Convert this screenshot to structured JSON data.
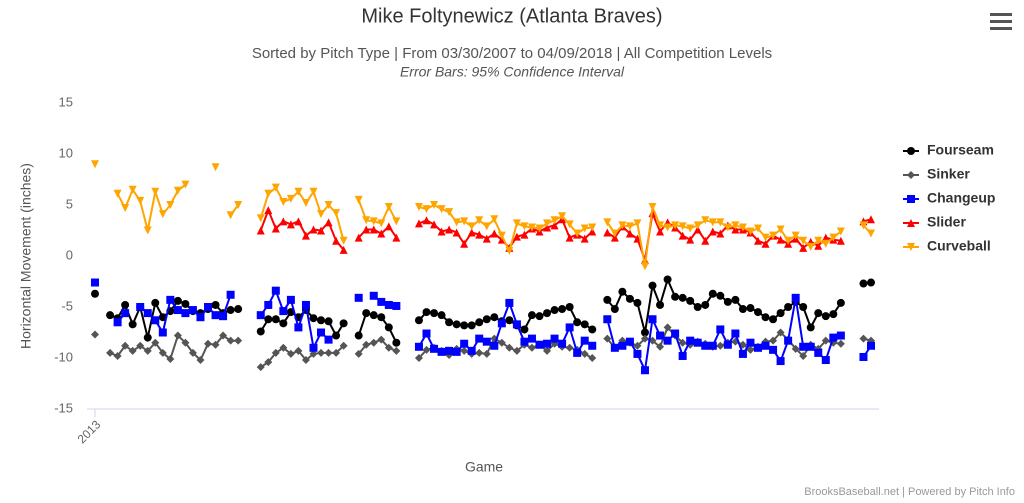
{
  "chart_data": {
    "type": "line",
    "title": "Mike Foltynewicz (Atlanta Braves)",
    "subtitle": "Sorted by Pitch Type | From 03/30/2007 to 04/09/2018 | All Competition Levels",
    "subtitle2": "Error Bars: 95% Confidence Interval",
    "x_label": "Game",
    "y_label": "Horizontal Movement (inches)",
    "credits": "BrooksBaseball.net | Powered by Pitch Info",
    "ylim": [
      -15,
      15
    ],
    "yticks": [
      15,
      10,
      5,
      0,
      -5,
      -10,
      -15
    ],
    "legend": "right",
    "categories": [
      "2013",
      null,
      null,
      null,
      null,
      null,
      null,
      null,
      null,
      null,
      null,
      null,
      null,
      null,
      null,
      null,
      null,
      null,
      null,
      null,
      null,
      null,
      null,
      null,
      null,
      null,
      null,
      null,
      null,
      null,
      null,
      null,
      null,
      null,
      null,
      null,
      null,
      null,
      null,
      null,
      null,
      null,
      null,
      null,
      null,
      null,
      null,
      null,
      null,
      null,
      null,
      null,
      null,
      null,
      null,
      null,
      null,
      null,
      null,
      null,
      null,
      null,
      null,
      null,
      null,
      null,
      null,
      null,
      null,
      null,
      null,
      null,
      null,
      null,
      null,
      null,
      null,
      null,
      null,
      null,
      null,
      null,
      null,
      null,
      null,
      null,
      null,
      null,
      null,
      null,
      null,
      null,
      null,
      null,
      null,
      null,
      null,
      null,
      null,
      null,
      null,
      null,
      null,
      null
    ],
    "series": [
      {
        "name": "Fourseam",
        "color": "#000000",
        "marker": "circle",
        "values": [
          -3.7,
          null,
          -5.8,
          -6.1,
          -4.8,
          -6.7,
          -5.0,
          -8.0,
          -4.6,
          -6.0,
          -5.4,
          -4.4,
          -4.7,
          -5.4,
          -5.6,
          -5.2,
          -4.8,
          -5.6,
          -5.3,
          -5.2,
          null,
          null,
          -7.4,
          -6.2,
          -6.2,
          -6.6,
          -5.5,
          -6.0,
          -5.3,
          -6.1,
          -6.3,
          -6.4,
          -7.8,
          -6.6,
          null,
          -7.8,
          -5.6,
          -5.8,
          -6.0,
          -7.0,
          -8.5,
          null,
          null,
          -6.3,
          -5.5,
          -5.6,
          -5.8,
          -6.5,
          -6.7,
          -6.8,
          -6.8,
          -6.5,
          -6.2,
          -6.0,
          -6.4,
          -6.3,
          -6.8,
          -7.2,
          -5.8,
          -5.9,
          -5.6,
          -5.3,
          -5.2,
          -5.0,
          -6.5,
          -6.7,
          -7.2,
          null,
          -4.3,
          -5.2,
          -3.5,
          -4.2,
          -4.6,
          -7.5,
          -2.9,
          -4.8,
          -2.3,
          -4.0,
          -4.1,
          -4.4,
          -5.0,
          -4.8,
          -3.7,
          -3.9,
          -4.5,
          -4.3,
          -5.2,
          -5.1,
          -5.5,
          -6.0,
          -6.2,
          -5.6,
          -5.0,
          -4.5,
          -5.0,
          -7.0,
          -5.6,
          -5.9,
          -5.7,
          -4.6,
          null,
          null,
          -2.7,
          -2.6
        ]
      },
      {
        "name": "Sinker",
        "color": "#555555",
        "marker": "diamond",
        "values": [
          -7.7,
          null,
          -9.5,
          -9.8,
          -8.8,
          -9.3,
          -8.8,
          -9.3,
          -8.5,
          -9.5,
          -10.1,
          -7.8,
          -8.5,
          -9.5,
          -10.2,
          -8.6,
          -8.7,
          -7.8,
          -8.3,
          -8.3,
          null,
          null,
          -10.9,
          -10.4,
          -9.5,
          -9.0,
          -9.6,
          -9.3,
          -10.2,
          -9.6,
          -9.5,
          -9.5,
          -9.5,
          -8.8,
          null,
          -9.6,
          -8.7,
          -8.5,
          -8.2,
          -9.0,
          -9.3,
          null,
          null,
          -10.0,
          -9.2,
          -9.0,
          -9.3,
          -9.7,
          -9.1,
          -9.3,
          -9.6,
          -9.5,
          -9.6,
          -8.1,
          -8.5,
          -9.0,
          -9.3,
          -8.7,
          -9.0,
          -8.7,
          -9.3,
          -8.6,
          -8.9,
          -9.0,
          -9.2,
          -9.6,
          -10.0,
          null,
          -8.1,
          -9.0,
          -8.3,
          -8.5,
          -8.8,
          -8.1,
          -8.3,
          -8.9,
          -7.0,
          -7.8,
          -8.5,
          -8.7,
          -8.4,
          -8.6,
          -8.9,
          -8.8,
          -8.5,
          -8.4,
          -8.7,
          -9.2,
          -8.9,
          -8.4,
          -8.3,
          -7.5,
          -8.2,
          -9.1,
          -9.8,
          -8.7,
          -9.1,
          -8.3,
          -8.5,
          -8.6,
          null,
          null,
          -8.1,
          -8.3
        ]
      },
      {
        "name": "Changeup",
        "color": "#0000ff",
        "marker": "square",
        "values": [
          -2.6,
          null,
          null,
          -6.5,
          -5.6,
          null,
          -5.0,
          -5.6,
          -6.3,
          -7.5,
          -4.3,
          -5.3,
          -5.6,
          -5.3,
          -6.0,
          -5.0,
          -5.8,
          -5.9,
          -3.8,
          null,
          null,
          null,
          -5.8,
          -4.8,
          -3.4,
          -5.4,
          -4.3,
          -7.0,
          -4.8,
          -9.0,
          -7.5,
          -8.2,
          null,
          null,
          null,
          -4.1,
          null,
          -3.9,
          -4.5,
          -4.8,
          -4.9,
          null,
          null,
          -8.9,
          -7.6,
          -9.1,
          -9.4,
          -9.3,
          -9.4,
          -8.6,
          -9.3,
          -8.1,
          -8.4,
          -8.8,
          -6.6,
          -4.6,
          -6.7,
          -8.4,
          -8.1,
          -8.7,
          -8.6,
          -8.1,
          -8.6,
          -7.0,
          -9.5,
          -8.3,
          -8.8,
          null,
          -6.2,
          -9.0,
          -8.8,
          -8.4,
          -9.6,
          -11.2,
          -6.2,
          -7.8,
          -8.3,
          -7.6,
          -9.8,
          -8.3,
          -8.5,
          -8.8,
          -8.8,
          -7.2,
          -8.7,
          -7.6,
          -9.6,
          -8.5,
          -9.0,
          -8.8,
          -9.2,
          -10.3,
          -8.3,
          -4.1,
          -8.9,
          -8.9,
          -9.5,
          -10.2,
          -8.0,
          -7.8,
          null,
          null,
          -9.9,
          -8.8
        ]
      },
      {
        "name": "Slider",
        "color": "#ff0000",
        "marker": "triangle",
        "values": [
          null,
          null,
          null,
          null,
          null,
          null,
          null,
          null,
          null,
          null,
          null,
          null,
          null,
          null,
          null,
          null,
          null,
          null,
          null,
          null,
          null,
          null,
          2.5,
          4.5,
          2.7,
          3.4,
          3.1,
          3.4,
          2.0,
          2.6,
          2.5,
          3.3,
          1.5,
          0.6,
          null,
          1.8,
          2.6,
          2.6,
          2.2,
          2.9,
          1.8,
          null,
          null,
          3.2,
          3.5,
          3.1,
          2.4,
          2.6,
          2.3,
          1.2,
          2.3,
          2.1,
          1.7,
          2.2,
          1.6,
          0.8,
          1.9,
          2.1,
          2.7,
          2.4,
          2.8,
          3.0,
          3.6,
          1.8,
          2.1,
          1.7,
          2.4,
          null,
          2.3,
          1.8,
          2.9,
          2.2,
          1.7,
          -0.4,
          4.2,
          2.4,
          3.3,
          2.8,
          2.0,
          1.6,
          2.6,
          1.5,
          2.4,
          2.2,
          3.0,
          2.6,
          2.6,
          2.3,
          1.5,
          1.2,
          2.0,
          1.6,
          1.2,
          1.7,
          0.8,
          1.4,
          1.0,
          1.8,
          1.6,
          1.5,
          null,
          null,
          3.4,
          3.6
        ]
      },
      {
        "name": "Curveball",
        "color": "#ffa500",
        "marker": "triangle-down",
        "values": [
          9.0,
          null,
          null,
          6.1,
          4.7,
          6.5,
          5.4,
          2.5,
          6.3,
          4.1,
          5.0,
          6.4,
          7.0,
          null,
          null,
          null,
          8.7,
          null,
          4.0,
          5.0,
          null,
          null,
          3.7,
          6.1,
          6.7,
          5.3,
          5.6,
          6.3,
          5.2,
          6.3,
          4.1,
          5.0,
          4.2,
          1.5,
          null,
          5.5,
          3.5,
          3.4,
          3.2,
          4.8,
          3.4,
          null,
          null,
          4.8,
          4.6,
          5.0,
          4.6,
          4.3,
          3.3,
          3.4,
          2.9,
          3.5,
          2.9,
          3.6,
          2.0,
          0.5,
          3.2,
          2.9,
          2.8,
          2.7,
          3.2,
          3.5,
          3.9,
          3.1,
          2.2,
          2.7,
          2.8,
          null,
          3.3,
          2.2,
          3.0,
          2.9,
          3.2,
          -1.0,
          4.8,
          3.0,
          2.8,
          3.0,
          2.9,
          2.7,
          3.0,
          3.5,
          3.3,
          3.3,
          2.8,
          3.0,
          2.8,
          2.4,
          2.7,
          1.8,
          2.0,
          2.6,
          1.5,
          2.0,
          1.5,
          0.9,
          1.5,
          1.2,
          1.8,
          2.4,
          null,
          null,
          3.0,
          2.2
        ]
      }
    ]
  }
}
